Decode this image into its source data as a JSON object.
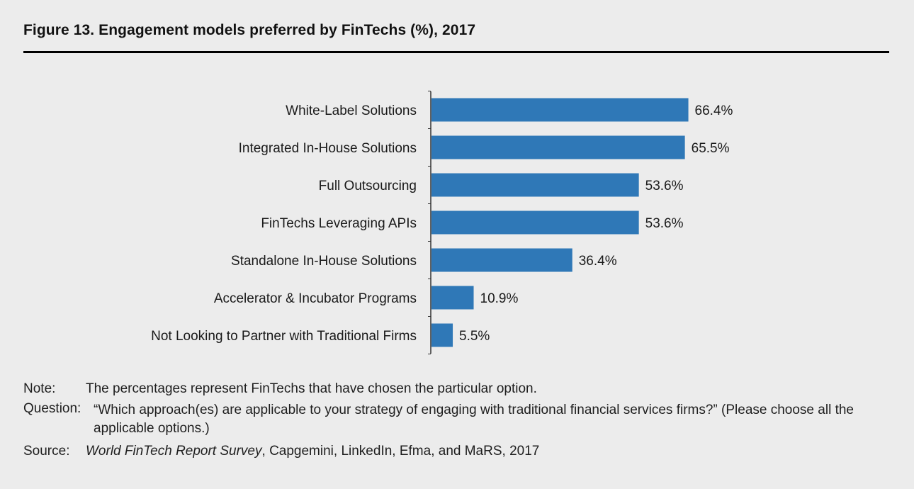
{
  "title": "Figure 13. Engagement models preferred by FinTechs (%), 2017",
  "colors": {
    "bar": "#2f78b7",
    "axis": "#333333"
  },
  "chart_data": {
    "type": "bar",
    "orientation": "horizontal",
    "categories": [
      "White-Label Solutions",
      "Integrated In-House Solutions",
      "Full Outsourcing",
      "FinTechs Leveraging APIs",
      "Standalone In-House Solutions",
      "Accelerator & Incubator Programs",
      "Not Looking to Partner with Traditional Firms"
    ],
    "values": [
      66.4,
      65.5,
      53.6,
      53.6,
      36.4,
      10.9,
      5.5
    ],
    "value_labels": [
      "66.4%",
      "65.5%",
      "53.6%",
      "53.6%",
      "36.4%",
      "10.9%",
      "5.5%"
    ],
    "xlim": [
      0,
      100
    ],
    "grid": false
  },
  "notes": {
    "note_label": "Note:",
    "note_text": "The percentages represent FinTechs that have chosen the particular option.",
    "question_label": "Question:",
    "question_text": "“Which approach(es) are applicable to your strategy of engaging with traditional financial services firms?” (Please choose all the applicable options.)",
    "source_label": "Source:",
    "source_title": "World FinTech Report Survey",
    "source_rest": ", Capgemini, LinkedIn, Efma, and MaRS, 2017"
  }
}
